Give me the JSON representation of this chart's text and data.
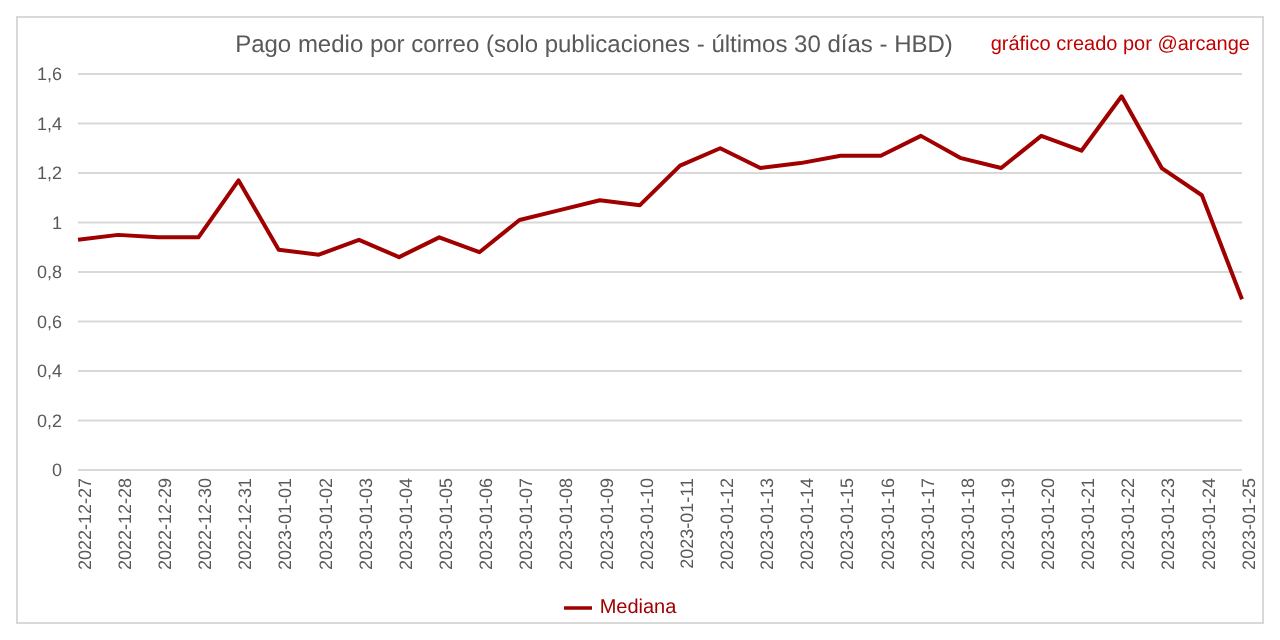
{
  "chart_data": {
    "type": "line",
    "title": "Pago medio por correo (solo publicaciones - últimos 30 días - HBD)",
    "annotations": [
      "gráfico creado por @arcange"
    ],
    "categories": [
      "2022-12-27",
      "2022-12-28",
      "2022-12-29",
      "2022-12-30",
      "2022-12-31",
      "2023-01-01",
      "2023-01-02",
      "2023-01-03",
      "2023-01-04",
      "2023-01-05",
      "2023-01-06",
      "2023-01-07",
      "2023-01-08",
      "2023-01-09",
      "2023-01-10",
      "2023-01-11",
      "2023-01-12",
      "2023-01-13",
      "2023-01-14",
      "2023-01-15",
      "2023-01-16",
      "2023-01-17",
      "2023-01-18",
      "2023-01-19",
      "2023-01-20",
      "2023-01-21",
      "2023-01-22",
      "2023-01-23",
      "2023-01-24",
      "2023-01-25"
    ],
    "series": [
      {
        "name": "Mediana",
        "color": "#a00000",
        "values": [
          0.93,
          0.95,
          0.94,
          0.94,
          1.17,
          0.89,
          0.87,
          0.93,
          0.86,
          0.94,
          0.88,
          1.01,
          1.05,
          1.09,
          1.07,
          1.23,
          1.3,
          1.22,
          1.24,
          1.27,
          1.27,
          1.35,
          1.26,
          1.22,
          1.35,
          1.29,
          1.51,
          1.22,
          1.11,
          0.69
        ]
      }
    ],
    "ylim": [
      0,
      1.6
    ],
    "yticks": [
      {
        "value": 0,
        "label": "0"
      },
      {
        "value": 0.2,
        "label": "0,2"
      },
      {
        "value": 0.4,
        "label": "0,4"
      },
      {
        "value": 0.6,
        "label": "0,6"
      },
      {
        "value": 0.8,
        "label": "0,8"
      },
      {
        "value": 1,
        "label": "1"
      },
      {
        "value": 1.2,
        "label": "1,2"
      },
      {
        "value": 1.4,
        "label": "1,4"
      },
      {
        "value": 1.6,
        "label": "1,6"
      }
    ],
    "grid": "y",
    "legend": "bottom",
    "marker": "none",
    "line_style": "solid"
  }
}
